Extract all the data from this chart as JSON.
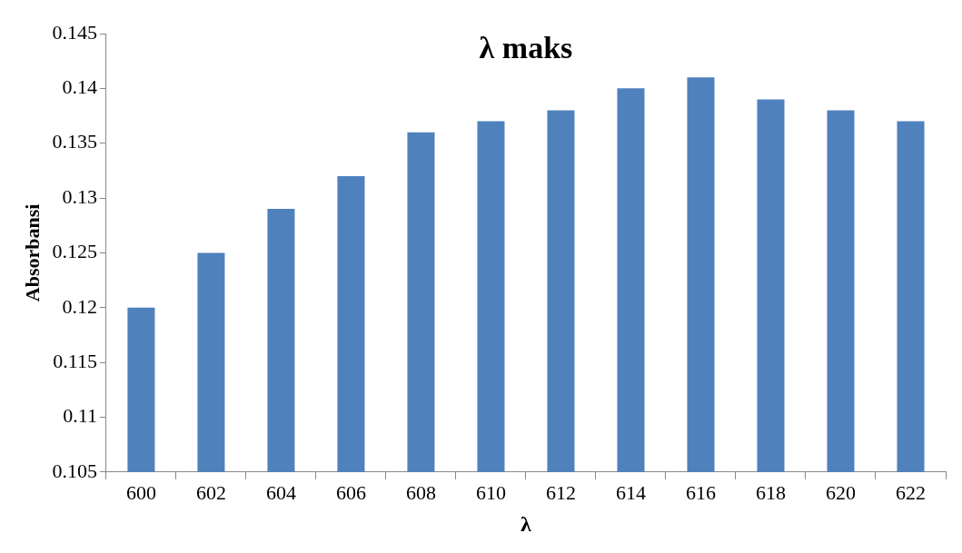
{
  "chart_data": {
    "type": "bar",
    "title": "λ maks",
    "xlabel": "λ",
    "ylabel": "Absorbansi",
    "categories": [
      "600",
      "602",
      "604",
      "606",
      "608",
      "610",
      "612",
      "614",
      "616",
      "618",
      "620",
      "622"
    ],
    "values": [
      0.12,
      0.125,
      0.129,
      0.132,
      0.136,
      0.137,
      0.138,
      0.14,
      0.141,
      0.139,
      0.138,
      0.137
    ],
    "color": "#4f81bd",
    "ylim": [
      0.105,
      0.145
    ],
    "yticks": [
      0.105,
      0.11,
      0.115,
      0.12,
      0.125,
      0.13,
      0.135,
      0.14,
      0.145
    ],
    "grid": false,
    "legend": false
  }
}
